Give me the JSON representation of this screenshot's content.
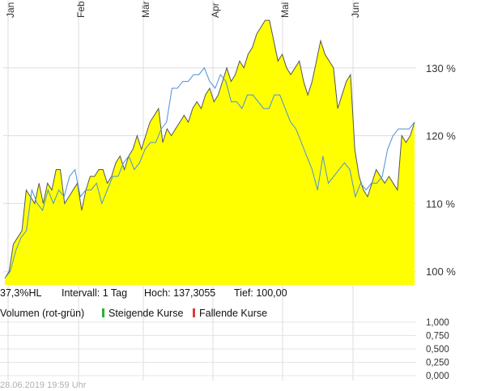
{
  "chart_data": [
    {
      "type": "area",
      "x_ticks": [
        "Jan",
        "Feb",
        "Mär",
        "Apr",
        "Mai",
        "Jun"
      ],
      "y_ticks": [
        "100 %",
        "110 %",
        "120 %",
        "130 %"
      ],
      "ylim": [
        98,
        140
      ],
      "colors": {
        "area_fill": "#ffff00",
        "area_line": "#555555",
        "compare_line": "#4a90d9",
        "grid": "#dddddd"
      },
      "series": [
        {
          "values": [
            99,
            100,
            104,
            105,
            106,
            112,
            111,
            110,
            113,
            110,
            113,
            112,
            115,
            115,
            110,
            111,
            112,
            113,
            109,
            112,
            114,
            114,
            115,
            115,
            113,
            114,
            116,
            117,
            115,
            117,
            118,
            120,
            118,
            120,
            122,
            123,
            124,
            119,
            121,
            120,
            121,
            122,
            123,
            122,
            124,
            125,
            124,
            126,
            127,
            125,
            126,
            128,
            130,
            128,
            129,
            131,
            130,
            132,
            133,
            135,
            136,
            137,
            137,
            134,
            131,
            132,
            130,
            129,
            130,
            131,
            128,
            126,
            128,
            131,
            134,
            132,
            131,
            130,
            124,
            126,
            128,
            129,
            118,
            114,
            112,
            111,
            113,
            115,
            114,
            113,
            114,
            113,
            112,
            120,
            119,
            120,
            122
          ]
        },
        {
          "values": [
            99,
            100,
            103,
            105,
            106,
            112,
            110,
            109,
            112,
            110,
            112,
            111,
            114,
            115,
            111,
            112,
            112,
            113,
            110,
            112,
            114,
            114,
            116,
            117,
            115,
            116,
            118,
            119,
            119,
            121,
            122,
            127,
            127,
            128,
            128,
            129,
            129,
            130,
            128,
            127,
            129,
            128,
            125,
            125,
            124,
            126,
            126,
            125,
            124,
            124,
            126,
            126,
            124,
            122,
            121,
            119,
            117,
            115,
            112,
            117,
            113,
            114,
            115,
            116,
            115,
            111,
            113,
            112,
            113,
            113,
            114,
            118,
            120,
            121,
            121,
            121,
            122
          ]
        }
      ]
    },
    {
      "type": "bar",
      "y_ticks": [
        "1,000",
        "0,750",
        "0,500",
        "0,250",
        "0,000"
      ],
      "ylim": [
        0,
        1
      ],
      "values": []
    }
  ],
  "stats": {
    "performance": "37,3%HL",
    "interval": "Intervall: 1 Tag",
    "high": "Hoch: 137,3055",
    "low": "Tief:  100,00"
  },
  "legend": {
    "volume": "Volumen (rot-grün)",
    "rising": "Steigende Kurse",
    "falling": "Fallende Kurse",
    "rising_color": "#2db02d",
    "falling_color": "#e03a3a"
  },
  "footer": {
    "timestamp": "28.06.2019 19:59 Uhr"
  }
}
